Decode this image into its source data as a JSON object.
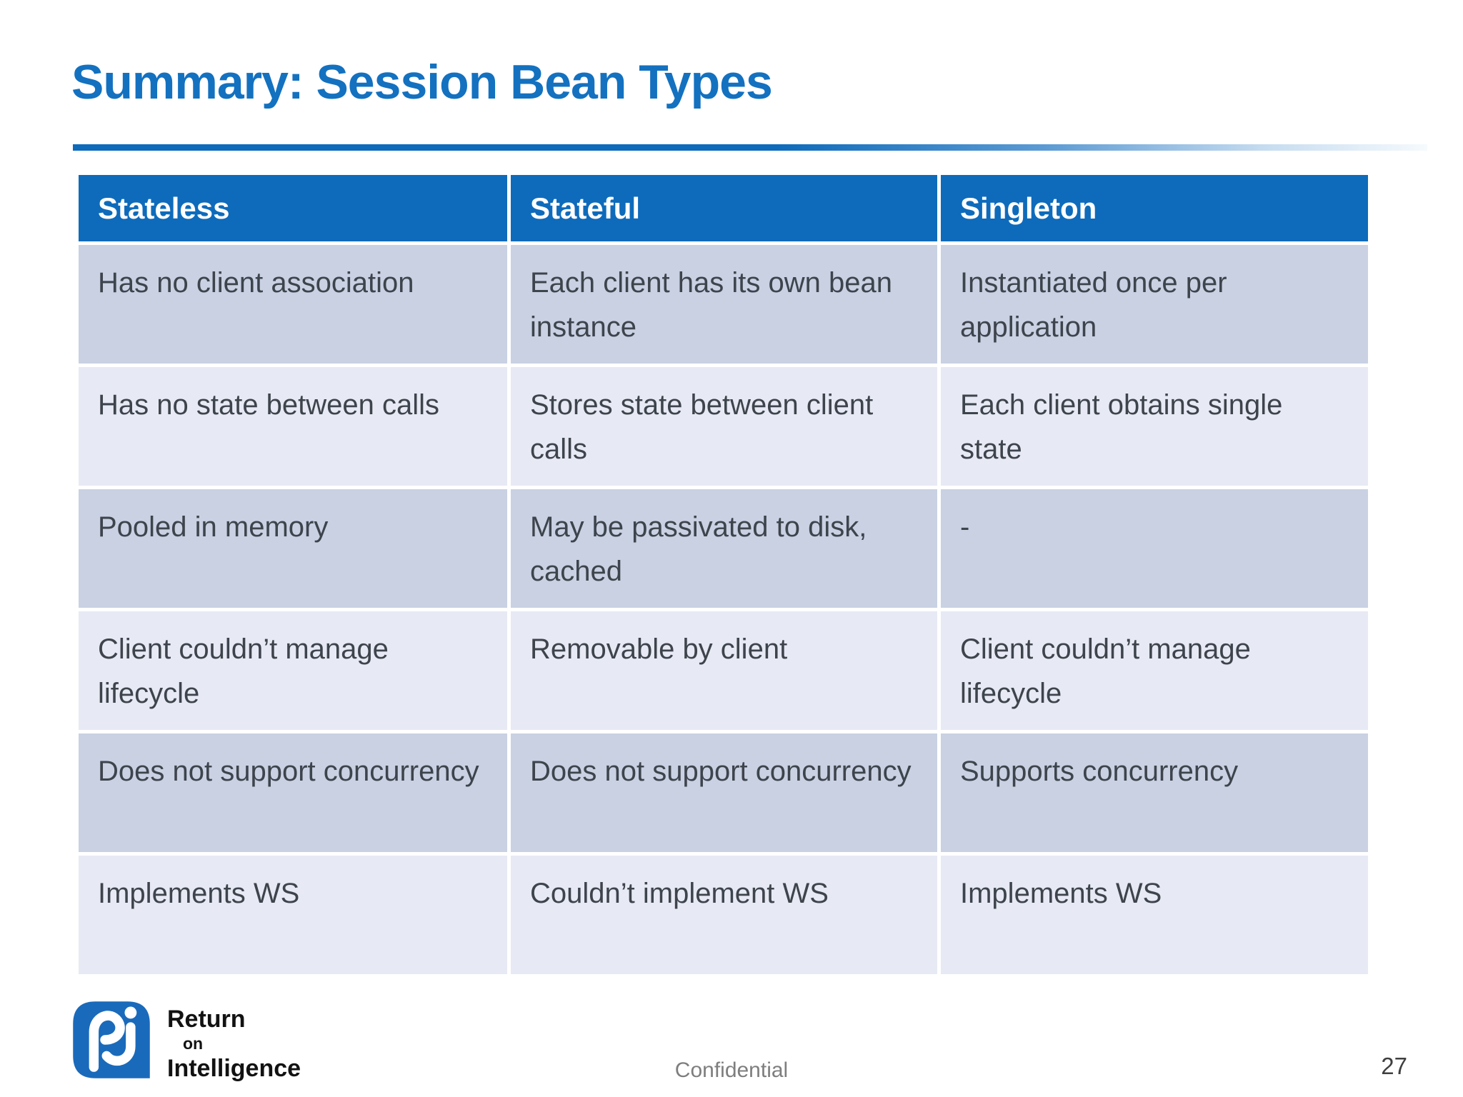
{
  "slide": {
    "title": "Summary: Session Bean Types",
    "footer": {
      "confidential": "Confidential",
      "page_number": "27"
    },
    "logo": {
      "line1": "Return",
      "line2": "on",
      "line3": "Intelligence",
      "icon": "return-on-intelligence-monogram"
    }
  },
  "colors": {
    "header_blue": "#0E6BBB",
    "title_blue": "#1371C0",
    "row_dark": "#C9D1E3",
    "row_light": "#E7EAF4",
    "cell_text": "#3E444C",
    "footer_gray": "#7E7E7E",
    "page_num": "#3F3F3F",
    "logo_blue": "#1A6ABB"
  },
  "chart_data": {
    "type": "table",
    "title": "Session Bean Types comparison",
    "columns": [
      "Stateless",
      "Stateful",
      "Singleton"
    ],
    "rows": [
      [
        "Has no client association",
        "Each client has its own bean instance",
        "Instantiated once per application"
      ],
      [
        "Has no state between calls",
        "Stores state between client calls",
        "Each client obtains single state"
      ],
      [
        "Pooled in memory",
        "May be passivated to disk, cached",
        "-"
      ],
      [
        "Client couldn’t manage lifecycle",
        "Removable by client",
        "Client couldn’t manage lifecycle"
      ],
      [
        "Does not support concurrency",
        "Does not support concurrency",
        "Supports concurrency"
      ],
      [
        "Implements WS",
        "Couldn’t implement WS",
        "Implements WS"
      ]
    ]
  }
}
